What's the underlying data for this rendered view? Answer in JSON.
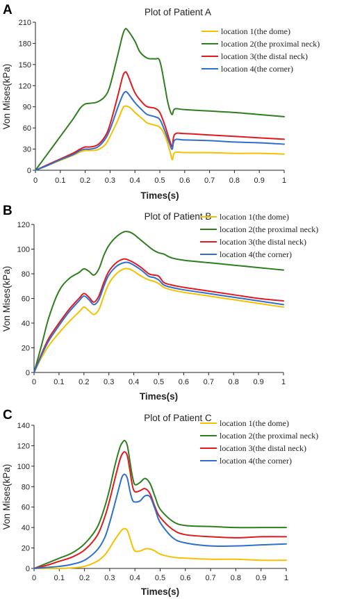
{
  "colors": {
    "series1": "#f5c000",
    "series2": "#2e7d1f",
    "series3": "#e0191e",
    "series4": "#2f6fcc"
  },
  "chart_data": [
    {
      "panel": "A",
      "type": "line",
      "title": "Plot of Patient A",
      "xlabel": "Times(s)",
      "ylabel": "Von Mises(kPa)",
      "xlim": [
        0,
        1
      ],
      "ylim": [
        0,
        210
      ],
      "xticks": [
        "0",
        "0.1",
        "0.2",
        "0.3",
        "0.4",
        "0.5",
        "0.6",
        "0.7",
        "0.8",
        "0.9",
        "1"
      ],
      "yticks": [
        "0",
        "30",
        "60",
        "90",
        "120",
        "150",
        "180",
        "210"
      ],
      "legend": "top-right",
      "series": [
        {
          "name": "location 1(the dome)",
          "color": "#f5c000",
          "x": [
            0,
            0.05,
            0.1,
            0.15,
            0.18,
            0.2,
            0.22,
            0.25,
            0.28,
            0.3,
            0.33,
            0.35,
            0.36,
            0.38,
            0.4,
            0.43,
            0.45,
            0.48,
            0.5,
            0.52,
            0.54,
            0.55,
            0.56,
            0.6,
            0.7,
            0.8,
            0.9,
            1.0
          ],
          "y": [
            0,
            7,
            14,
            21,
            26,
            28,
            28,
            29,
            36,
            48,
            70,
            87,
            91,
            89,
            82,
            73,
            67,
            64,
            61,
            50,
            28,
            15,
            25,
            25,
            25,
            24,
            24,
            23
          ]
        },
        {
          "name": "location 2(the proximal neck)",
          "color": "#2e7d1f",
          "x": [
            0,
            0.05,
            0.1,
            0.15,
            0.18,
            0.2,
            0.22,
            0.25,
            0.28,
            0.3,
            0.33,
            0.35,
            0.36,
            0.37,
            0.4,
            0.42,
            0.45,
            0.48,
            0.5,
            0.52,
            0.53,
            0.54,
            0.55,
            0.56,
            0.6,
            0.7,
            0.8,
            0.9,
            1.0
          ],
          "y": [
            0,
            24,
            48,
            72,
            88,
            94,
            95,
            97,
            105,
            120,
            162,
            191,
            200,
            199,
            183,
            168,
            159,
            158,
            155,
            120,
            100,
            86,
            79,
            87,
            86,
            84,
            82,
            79,
            76
          ]
        },
        {
          "name": "location 3(the distal neck)",
          "color": "#e0191e",
          "x": [
            0,
            0.05,
            0.1,
            0.15,
            0.18,
            0.2,
            0.22,
            0.25,
            0.28,
            0.3,
            0.33,
            0.35,
            0.36,
            0.37,
            0.4,
            0.43,
            0.45,
            0.48,
            0.5,
            0.52,
            0.54,
            0.55,
            0.56,
            0.6,
            0.7,
            0.8,
            0.9,
            1.0
          ],
          "y": [
            0,
            8,
            16,
            24,
            30,
            33,
            33,
            36,
            48,
            65,
            104,
            132,
            139,
            136,
            110,
            96,
            90,
            88,
            82,
            64,
            42,
            34,
            51,
            52,
            50,
            48,
            46,
            44
          ]
        },
        {
          "name": "location 4(the corner)",
          "color": "#2f6fcc",
          "x": [
            0,
            0.05,
            0.1,
            0.15,
            0.18,
            0.2,
            0.22,
            0.25,
            0.28,
            0.3,
            0.33,
            0.35,
            0.36,
            0.37,
            0.4,
            0.43,
            0.45,
            0.48,
            0.5,
            0.52,
            0.54,
            0.55,
            0.56,
            0.6,
            0.7,
            0.8,
            0.9,
            1.0
          ],
          "y": [
            0,
            7,
            15,
            22,
            28,
            30,
            30,
            33,
            44,
            58,
            88,
            106,
            111,
            110,
            96,
            85,
            79,
            76,
            72,
            56,
            37,
            30,
            43,
            43,
            42,
            40,
            39,
            37
          ]
        }
      ]
    },
    {
      "panel": "B",
      "type": "line",
      "title": "Plot of Patient B",
      "xlabel": "Times(s)",
      "ylabel": "Von Mises(kPa)",
      "xlim": [
        0,
        1
      ],
      "ylim": [
        0,
        120
      ],
      "xticks": [
        "0",
        "0.1",
        "0.2",
        "0.3",
        "0.4",
        "0.5",
        "0.6",
        "0.7",
        "0.8",
        "0.9",
        "1"
      ],
      "yticks": [
        "0",
        "20",
        "40",
        "60",
        "80",
        "100",
        "120"
      ],
      "legend": "top-right",
      "series": [
        {
          "name": "location 1(the dome)",
          "color": "#f5c000",
          "x": [
            0,
            0.03,
            0.06,
            0.1,
            0.14,
            0.18,
            0.2,
            0.22,
            0.24,
            0.26,
            0.28,
            0.3,
            0.33,
            0.36,
            0.38,
            0.4,
            0.43,
            0.46,
            0.48,
            0.5,
            0.52,
            0.55,
            0.6,
            0.7,
            0.8,
            0.9,
            1.0
          ],
          "y": [
            0,
            12,
            22,
            32,
            41,
            49,
            53,
            50,
            47,
            51,
            62,
            72,
            80,
            84,
            84,
            82,
            78,
            75,
            74,
            72,
            69,
            67,
            65,
            62,
            59,
            56,
            53
          ]
        },
        {
          "name": "location 2(the proximal neck)",
          "color": "#2e7d1f",
          "x": [
            0,
            0.03,
            0.06,
            0.1,
            0.14,
            0.18,
            0.2,
            0.22,
            0.24,
            0.26,
            0.28,
            0.3,
            0.33,
            0.36,
            0.38,
            0.4,
            0.43,
            0.46,
            0.48,
            0.5,
            0.52,
            0.55,
            0.6,
            0.7,
            0.8,
            0.9,
            1.0
          ],
          "y": [
            0,
            22,
            45,
            66,
            76,
            81,
            84,
            82,
            79,
            84,
            95,
            103,
            110,
            114,
            114,
            112,
            107,
            102,
            99,
            97,
            96,
            93,
            91,
            89,
            87,
            85,
            83
          ]
        },
        {
          "name": "location 3(the distal neck)",
          "color": "#e0191e",
          "x": [
            0,
            0.03,
            0.06,
            0.1,
            0.14,
            0.18,
            0.2,
            0.22,
            0.24,
            0.26,
            0.28,
            0.3,
            0.33,
            0.36,
            0.38,
            0.4,
            0.43,
            0.46,
            0.48,
            0.5,
            0.52,
            0.55,
            0.6,
            0.7,
            0.8,
            0.9,
            1.0
          ],
          "y": [
            0,
            15,
            28,
            40,
            51,
            60,
            64,
            61,
            57,
            62,
            73,
            82,
            89,
            92,
            91,
            89,
            85,
            80,
            79,
            78,
            73,
            71,
            69,
            66,
            63,
            60,
            58
          ]
        },
        {
          "name": "location 4(the corner)",
          "color": "#2f6fcc",
          "x": [
            0,
            0.03,
            0.06,
            0.1,
            0.14,
            0.18,
            0.2,
            0.22,
            0.24,
            0.26,
            0.28,
            0.3,
            0.33,
            0.36,
            0.38,
            0.4,
            0.43,
            0.46,
            0.48,
            0.5,
            0.52,
            0.55,
            0.6,
            0.7,
            0.8,
            0.9,
            1.0
          ],
          "y": [
            0,
            14,
            26,
            38,
            49,
            58,
            62,
            59,
            55,
            59,
            70,
            79,
            86,
            89,
            89,
            87,
            83,
            78,
            77,
            75,
            71,
            69,
            67,
            64,
            61,
            58,
            55
          ]
        }
      ]
    },
    {
      "panel": "C",
      "type": "line",
      "title": "Plot of Patient C",
      "xlabel": "Times(s)",
      "ylabel": "Von Mises(kPa)",
      "xlim": [
        0,
        1
      ],
      "ylim": [
        0,
        140
      ],
      "xticks": [
        "0",
        "0.1",
        "0.2",
        "0.3",
        "0.4",
        "0.5",
        "0.6",
        "0.7",
        "0.8",
        "0.9",
        "1"
      ],
      "yticks": [
        "0",
        "20",
        "40",
        "60",
        "80",
        "100",
        "120",
        "140"
      ],
      "legend": "top-right",
      "series": [
        {
          "name": "location 1(the dome)",
          "color": "#f5c000",
          "x": [
            0,
            0.1,
            0.15,
            0.2,
            0.25,
            0.28,
            0.3,
            0.32,
            0.34,
            0.35,
            0.36,
            0.37,
            0.38,
            0.39,
            0.4,
            0.42,
            0.44,
            0.46,
            0.48,
            0.5,
            0.55,
            0.6,
            0.7,
            0.8,
            0.9,
            1.0
          ],
          "y": [
            0,
            0,
            0.5,
            2,
            7,
            13,
            20,
            28,
            35,
            38,
            39,
            37,
            30,
            22,
            17,
            17,
            19,
            19,
            17,
            14,
            11,
            10,
            9,
            9,
            8,
            8
          ]
        },
        {
          "name": "location 2(the proximal neck)",
          "color": "#2e7d1f",
          "x": [
            0,
            0.05,
            0.1,
            0.15,
            0.2,
            0.25,
            0.28,
            0.3,
            0.32,
            0.34,
            0.35,
            0.36,
            0.37,
            0.38,
            0.39,
            0.4,
            0.42,
            0.44,
            0.46,
            0.48,
            0.5,
            0.55,
            0.6,
            0.7,
            0.8,
            0.9,
            1.0
          ],
          "y": [
            0,
            5,
            10,
            15,
            24,
            40,
            60,
            78,
            100,
            118,
            123,
            125,
            120,
            105,
            90,
            82,
            84,
            88,
            83,
            70,
            58,
            46,
            42,
            41,
            40,
            40,
            40
          ]
        },
        {
          "name": "location 3(the distal neck)",
          "color": "#e0191e",
          "x": [
            0,
            0.05,
            0.1,
            0.15,
            0.2,
            0.25,
            0.28,
            0.3,
            0.32,
            0.34,
            0.35,
            0.36,
            0.37,
            0.38,
            0.39,
            0.4,
            0.42,
            0.44,
            0.46,
            0.48,
            0.5,
            0.55,
            0.6,
            0.7,
            0.8,
            0.9,
            1.0
          ],
          "y": [
            0,
            3,
            7,
            11,
            18,
            32,
            50,
            67,
            87,
            106,
            112,
            114,
            110,
            96,
            81,
            75,
            76,
            78,
            73,
            60,
            50,
            38,
            33,
            31,
            30,
            31,
            31
          ]
        },
        {
          "name": "location 4(the corner)",
          "color": "#2f6fcc",
          "x": [
            0,
            0.05,
            0.1,
            0.15,
            0.2,
            0.25,
            0.28,
            0.3,
            0.32,
            0.34,
            0.35,
            0.36,
            0.37,
            0.38,
            0.39,
            0.4,
            0.42,
            0.44,
            0.46,
            0.48,
            0.5,
            0.55,
            0.6,
            0.7,
            0.8,
            0.9,
            1.0
          ],
          "y": [
            0,
            1,
            2,
            4,
            8,
            18,
            30,
            45,
            63,
            82,
            90,
            92,
            88,
            76,
            67,
            65,
            66,
            71,
            70,
            58,
            45,
            30,
            25,
            22,
            22,
            23,
            24
          ]
        }
      ]
    }
  ]
}
